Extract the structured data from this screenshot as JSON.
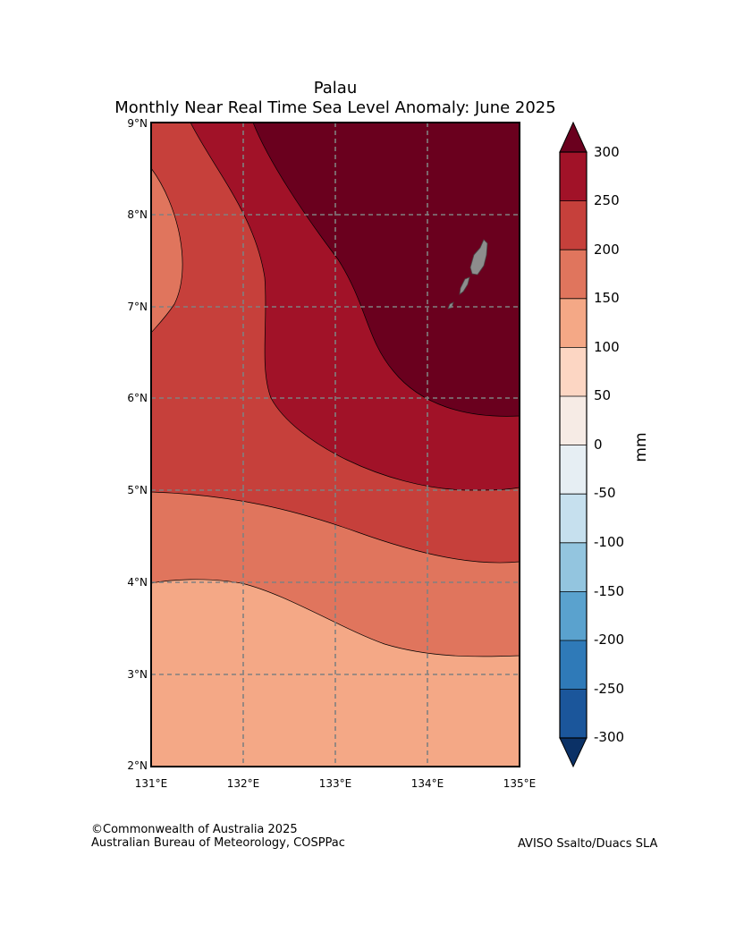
{
  "map": {
    "title": "Palau",
    "subtitle": "Monthly Near Real Time Sea Level Anomaly: June 2025",
    "lat_ticks": [
      "9°N",
      "8°N",
      "7°N",
      "6°N",
      "5°N",
      "4°N",
      "3°N",
      "2°N"
    ],
    "lon_ticks": [
      "131°E",
      "132°E",
      "133°E",
      "134°E",
      "135°E"
    ],
    "extent": {
      "lon": [
        131,
        135
      ],
      "lat": [
        2,
        9
      ]
    },
    "landmass": "Palau islands",
    "contour_colors": {
      "100_150": "#f4a886",
      "150_200": "#e0755d",
      "200_250": "#c6403b",
      "250_300": "#a11228",
      "above_300": "#6a001e"
    }
  },
  "colorbar": {
    "label": "mm",
    "ticks": [
      "300",
      "250",
      "200",
      "150",
      "100",
      "50",
      "0",
      "-50",
      "-100",
      "-150",
      "-200",
      "-250",
      "-300"
    ],
    "colors": [
      "#a11228",
      "#c6403b",
      "#e0755d",
      "#f4a886",
      "#fcd6c3",
      "#f6ebe5",
      "#e6eef3",
      "#c6e0ee",
      "#93c5df",
      "#5aa2ce",
      "#2f7ab8",
      "#1b569b"
    ],
    "over_color": "#6a001e",
    "under_color": "#0b3166"
  },
  "credits": {
    "copyright": "©Commonwealth of Australia 2025",
    "org": "Australian Bureau of Meteorology, COSPPac",
    "source": "AVISO Ssalto/Duacs SLA"
  }
}
